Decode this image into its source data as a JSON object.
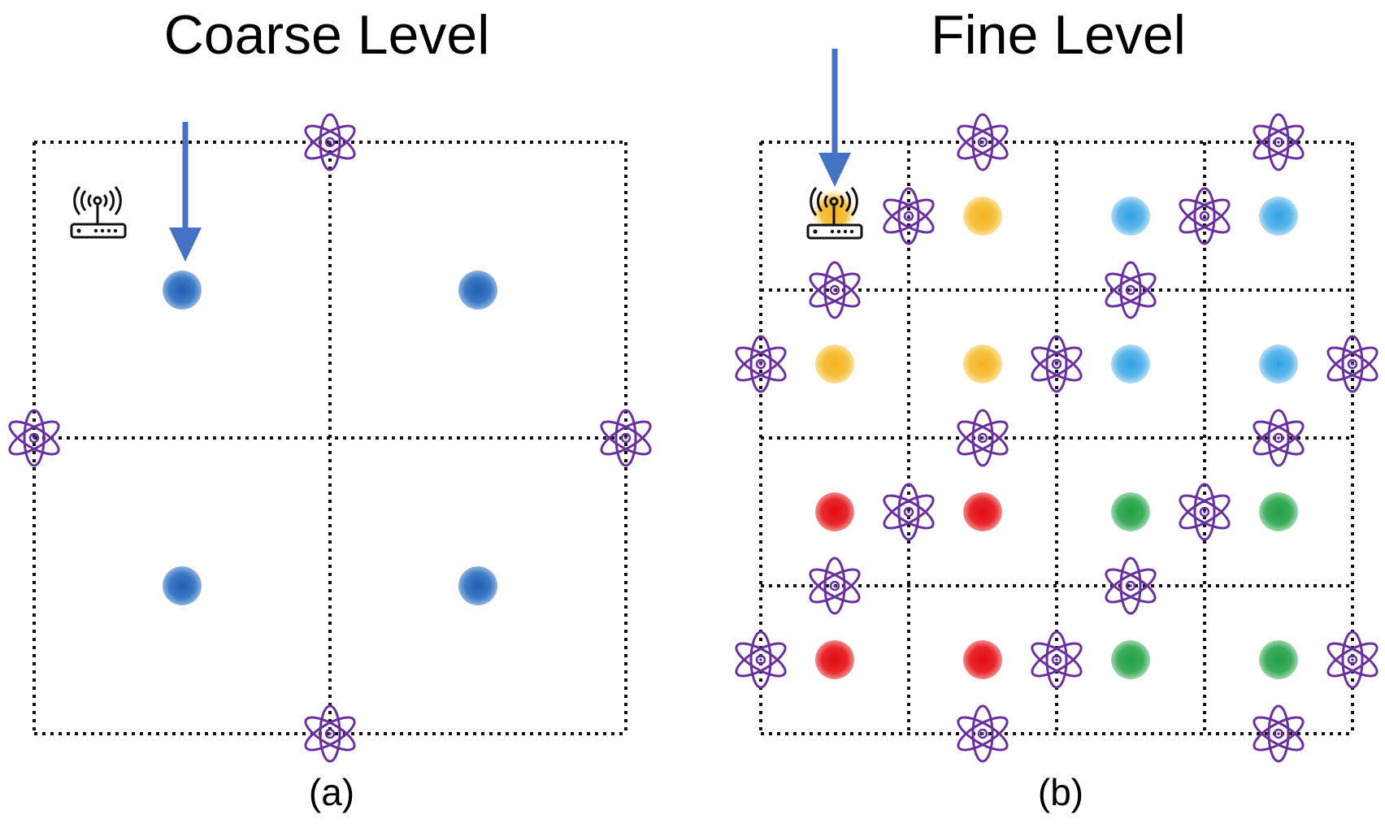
{
  "panels": [
    {
      "id": "a",
      "title": "Coarse Level",
      "caption": "(a)",
      "grid": 2,
      "dot_colors": [
        [
          "blue",
          "blue"
        ],
        [
          "blue",
          "blue"
        ]
      ]
    },
    {
      "id": "b",
      "title": "Fine Level",
      "caption": "(b)",
      "grid": 4,
      "dot_colors": [
        [
          "router",
          "yellow",
          "lightblue",
          "lightblue"
        ],
        [
          "yellow",
          "yellow",
          "lightblue",
          "lightblue"
        ],
        [
          "red",
          "red",
          "green",
          "green"
        ],
        [
          "red",
          "red",
          "green",
          "green"
        ]
      ]
    }
  ],
  "icons": [
    "router-icon",
    "atom-icon",
    "down-arrow-icon"
  ],
  "colors": {
    "blue": "#3c7ac6",
    "yellow": "#f5c242",
    "lightblue": "#5cb6ea",
    "red": "#e8272b",
    "green": "#3dad5b",
    "atom": "#6a2fa0",
    "arrow": "#4472c4",
    "grid_line": "#111111"
  }
}
